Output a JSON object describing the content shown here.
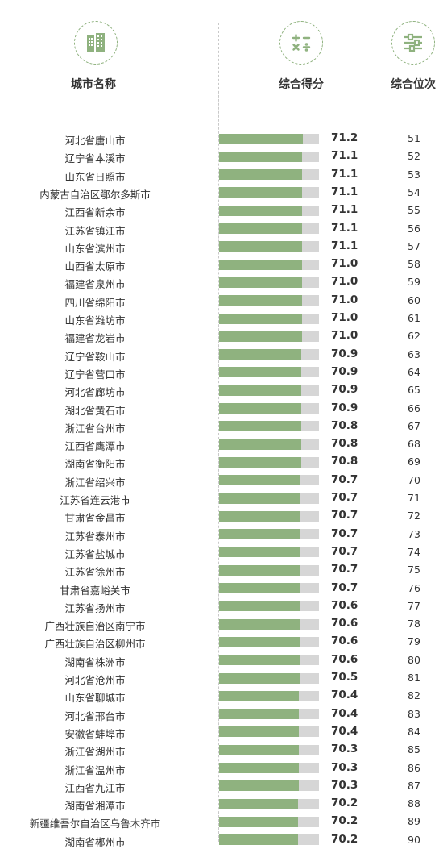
{
  "headers": {
    "city": "城市名称",
    "score": "综合得分",
    "rank": "综合位次"
  },
  "icons": {
    "city": "buildings-icon",
    "score": "calculator-icon",
    "rank": "sliders-icon"
  },
  "colors": {
    "bar": "#8fb27f",
    "bar_track": "#d6d6d6"
  },
  "chart_data": {
    "type": "bar",
    "orientation": "horizontal",
    "categories": [
      "河北省唐山市",
      "辽宁省本溪市",
      "山东省日照市",
      "内蒙古自治区鄂尔多斯市",
      "江西省新余市",
      "江苏省镇江市",
      "山东省滨州市",
      "山西省太原市",
      "福建省泉州市",
      "四川省绵阳市",
      "山东省潍坊市",
      "福建省龙岩市",
      "辽宁省鞍山市",
      "辽宁省营口市",
      "河北省廊坊市",
      "湖北省黄石市",
      "浙江省台州市",
      "江西省鹰潭市",
      "湖南省衡阳市",
      "浙江省绍兴市",
      "江苏省连云港市",
      "甘肃省金昌市",
      "江苏省泰州市",
      "江苏省盐城市",
      "江苏省徐州市",
      "甘肃省嘉峪关市",
      "江苏省扬州市",
      "广西壮族自治区南宁市",
      "广西壮族自治区柳州市",
      "湖南省株洲市",
      "河北省沧州市",
      "山东省聊城市",
      "河北省邢台市",
      "安徽省蚌埠市",
      "浙江省湖州市",
      "浙江省温州市",
      "江西省九江市",
      "湖南省湘潭市",
      "新疆维吾尔自治区乌鲁木齐市",
      "湖南省郴州市"
    ],
    "values": [
      71.2,
      71.1,
      71.1,
      71.1,
      71.1,
      71.1,
      71.1,
      71.0,
      71.0,
      71.0,
      71.0,
      71.0,
      70.9,
      70.9,
      70.9,
      70.9,
      70.8,
      70.8,
      70.8,
      70.7,
      70.7,
      70.7,
      70.7,
      70.7,
      70.7,
      70.7,
      70.6,
      70.6,
      70.6,
      70.6,
      70.5,
      70.4,
      70.4,
      70.4,
      70.3,
      70.3,
      70.3,
      70.2,
      70.2,
      70.2
    ],
    "value_labels": [
      "71.2",
      "71.1",
      "71.1",
      "71.1",
      "71.1",
      "71.1",
      "71.1",
      "71.0",
      "71.0",
      "71.0",
      "71.0",
      "71.0",
      "70.9",
      "70.9",
      "70.9",
      "70.9",
      "70.8",
      "70.8",
      "70.8",
      "70.7",
      "70.7",
      "70.7",
      "70.7",
      "70.7",
      "70.7",
      "70.7",
      "70.6",
      "70.6",
      "70.6",
      "70.6",
      "70.5",
      "70.4",
      "70.4",
      "70.4",
      "70.3",
      "70.3",
      "70.3",
      "70.2",
      "70.2",
      "70.2"
    ],
    "ranks": [
      "51",
      "52",
      "53",
      "54",
      "55",
      "56",
      "57",
      "58",
      "59",
      "60",
      "61",
      "62",
      "63",
      "64",
      "65",
      "66",
      "67",
      "68",
      "69",
      "70",
      "71",
      "72",
      "73",
      "74",
      "75",
      "76",
      "77",
      "78",
      "79",
      "80",
      "81",
      "82",
      "83",
      "84",
      "85",
      "86",
      "87",
      "88",
      "89",
      "90"
    ]
  }
}
